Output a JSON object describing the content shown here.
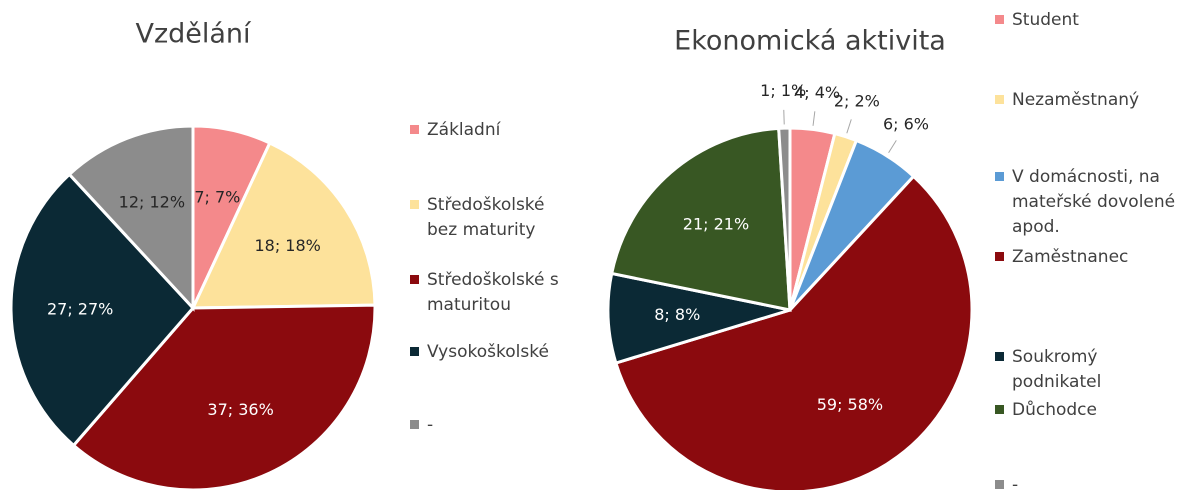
{
  "chart_data": [
    {
      "type": "pie",
      "title": "Vzdělání",
      "categories": [
        "Základní",
        "Středoškolské bez maturity",
        "Středoškolské s maturitou",
        "Vysokoškolské",
        "-"
      ],
      "values": [
        7,
        18,
        37,
        27,
        12
      ],
      "value_labels": [
        "7; 7%",
        "18; 18%",
        "37; 36%",
        "27; 27%",
        "12; 12%"
      ],
      "colors": [
        "#f4898b",
        "#fde29b",
        "#8b0a0e",
        "#0b2935",
        "#8c8c8c"
      ],
      "legend": "right"
    },
    {
      "type": "pie",
      "title": "Ekonomická aktivita",
      "categories": [
        "Student",
        "Nezaměstnaný",
        "V domácnosti, na mateřské dovolené apod.",
        "Zaměstnanec",
        "Soukromý podnikatel",
        "Důchodce",
        "-"
      ],
      "values": [
        4,
        2,
        6,
        59,
        8,
        21,
        1
      ],
      "value_labels": [
        "4; 4%",
        "2; 2%",
        "6; 6%",
        "59; 58%",
        "8; 8%",
        "21; 21%",
        "1; 1%"
      ],
      "colors": [
        "#f4898b",
        "#fde29b",
        "#5b9bd5",
        "#8b0a0e",
        "#0b2935",
        "#385723",
        "#8c8c8c"
      ],
      "legend": "right"
    }
  ]
}
